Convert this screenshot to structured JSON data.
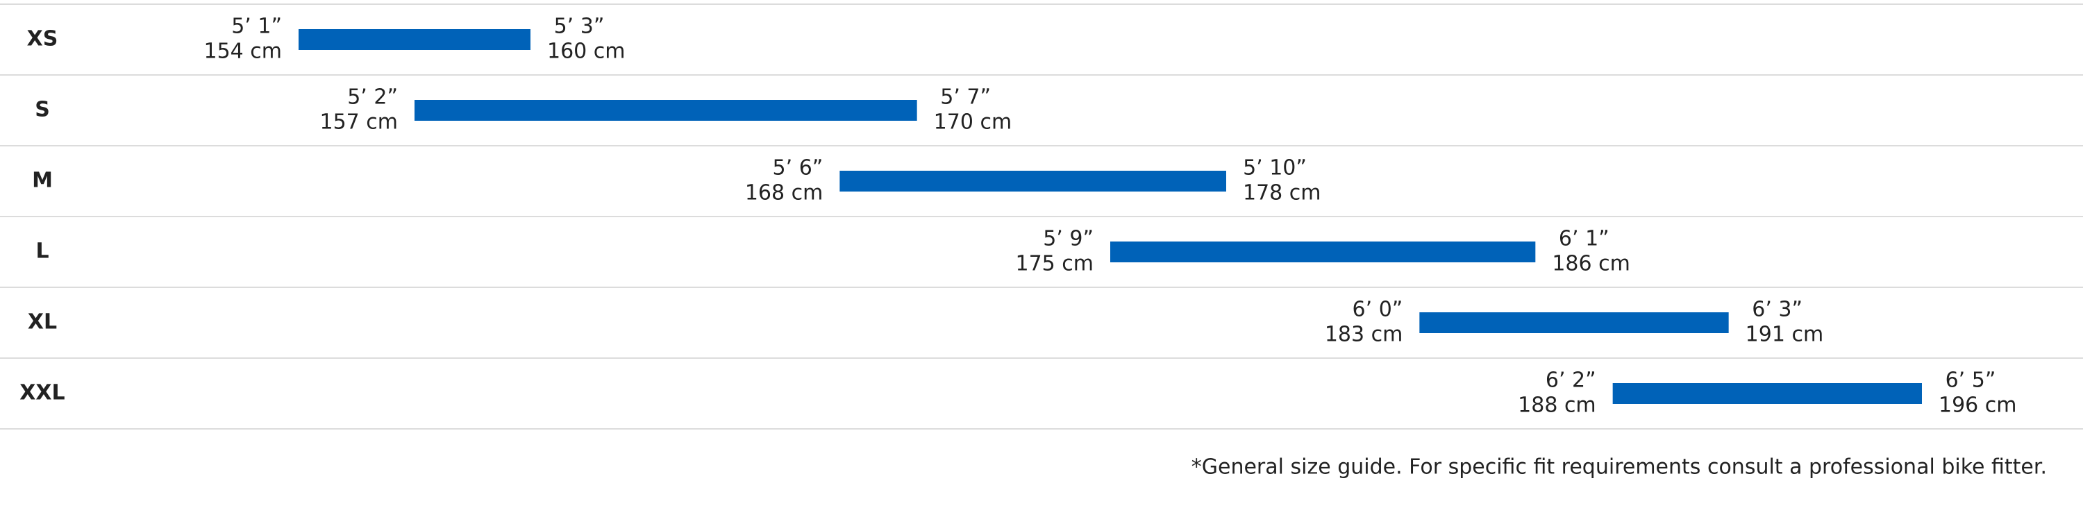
{
  "chart_data": {
    "type": "range-bar",
    "categories": [
      "XS",
      "S",
      "M",
      "L",
      "XL",
      "XXL"
    ],
    "color": "#0062b8",
    "low": {
      "values": [
        154,
        157,
        168,
        175,
        183,
        188
      ],
      "value_labels": [
        "154 cm",
        "157 cm",
        "168 cm",
        "175 cm",
        "183 cm",
        "188 cm"
      ],
      "imperial_labels": [
        "5’ 1”",
        "5’ 2”",
        "5’ 6”",
        "5’ 9”",
        "6’ 0”",
        "6’ 2”"
      ]
    },
    "high": {
      "values": [
        160,
        170,
        178,
        186,
        191,
        196
      ],
      "value_labels": [
        "160 cm",
        "170 cm",
        "178 cm",
        "186 cm",
        "191 cm",
        "196 cm"
      ],
      "imperial_labels": [
        "5’ 3”",
        "5’ 7”",
        "5’ 10”",
        "6’ 1”",
        "6’ 3”",
        "6’ 5”"
      ]
    },
    "note": "*General size guide. For specific fit requirements consult a professional bike fitter."
  }
}
